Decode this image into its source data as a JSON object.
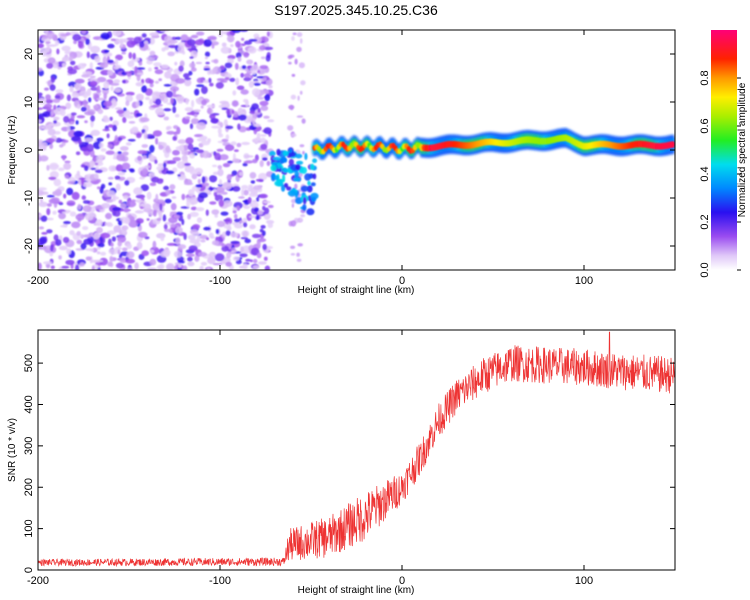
{
  "title": "S197.2025.345.10.25.C36",
  "chart_data": [
    {
      "type": "heatmap",
      "name": "spectrogram",
      "xlabel": "Height of straight line (km)",
      "ylabel": "Frequency (Hz)",
      "xlim": [
        -200,
        150
      ],
      "ylim": [
        -25,
        25
      ],
      "xticks": [
        -200,
        -100,
        0,
        100
      ],
      "yticks": [
        -20,
        -10,
        0,
        10,
        20
      ],
      "colorbar": {
        "label": "Normalized spectral amplitude",
        "range": [
          0,
          1
        ],
        "ticks": [
          0.0,
          0.2,
          0.4,
          0.6,
          0.8
        ],
        "tick_labels": [
          "0.0",
          "0.2",
          "0.4",
          "0.6",
          "0.8"
        ]
      },
      "regions": [
        {
          "kind": "noise",
          "x_range": [
            -200,
            -72
          ],
          "freq_range": [
            -25,
            25
          ],
          "amplitude_range": [
            0.05,
            0.25
          ]
        },
        {
          "kind": "noise-strip",
          "x_range": [
            -62,
            -54
          ],
          "freq_range": [
            -25,
            25
          ],
          "amplitude_range": [
            0.05,
            0.12
          ]
        },
        {
          "kind": "transition-blob",
          "x_range": [
            -72,
            -48
          ],
          "freq_range": [
            -13,
            2
          ],
          "amplitude_range": [
            0.2,
            0.45
          ]
        },
        {
          "kind": "signal-ridge",
          "x_range": [
            -48,
            150
          ],
          "center_freq_points": [
            [
              -48,
              0
            ],
            [
              -30,
              0.8
            ],
            [
              -15,
              0.7
            ],
            [
              0,
              0.2
            ],
            [
              20,
              0.8
            ],
            [
              50,
              1.5
            ],
            [
              75,
              2.0
            ],
            [
              90,
              2.3
            ],
            [
              100,
              1.0
            ],
            [
              130,
              1.0
            ],
            [
              150,
              1.0
            ]
          ],
          "amplitude": "peaks 0.8-1.0"
        }
      ]
    },
    {
      "type": "line",
      "name": "snr",
      "xlabel": "Height of straight line (km)",
      "ylabel": "SNR (10 * v/v)",
      "xlim": [
        -200,
        150
      ],
      "ylim": [
        0,
        580
      ],
      "xticks": [
        -200,
        -100,
        0,
        100
      ],
      "yticks": [
        0,
        100,
        200,
        300,
        400,
        500
      ],
      "color": "#ee3333",
      "trend_points": [
        [
          -200,
          18
        ],
        [
          -65,
          20
        ],
        [
          -62,
          60
        ],
        [
          -40,
          80
        ],
        [
          -20,
          130
        ],
        [
          0,
          200
        ],
        [
          10,
          270
        ],
        [
          20,
          360
        ],
        [
          30,
          420
        ],
        [
          45,
          470
        ],
        [
          60,
          500
        ],
        [
          80,
          495
        ],
        [
          100,
          490
        ],
        [
          120,
          480
        ],
        [
          150,
          470
        ]
      ],
      "noise_amplitude_points": [
        [
          -200,
          8
        ],
        [
          -65,
          10
        ],
        [
          -62,
          40
        ],
        [
          -20,
          60
        ],
        [
          0,
          40
        ],
        [
          50,
          45
        ],
        [
          150,
          45
        ]
      ],
      "peak": {
        "x": 114,
        "y": 575
      }
    }
  ]
}
